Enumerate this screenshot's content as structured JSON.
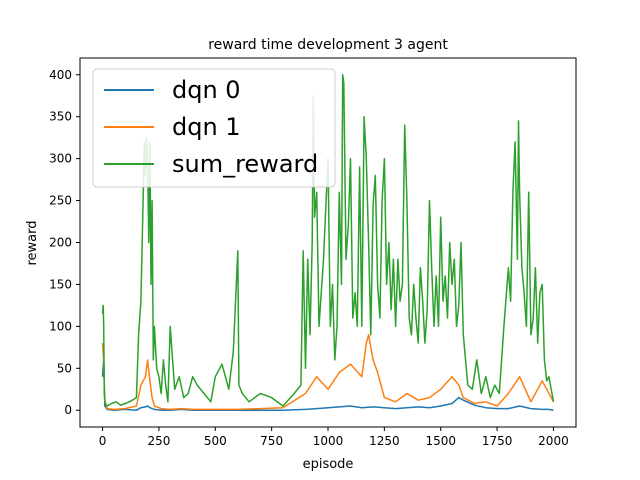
{
  "chart_data": {
    "type": "line",
    "title": "reward time development 3 agent",
    "xlabel": "episode",
    "ylabel": "reward",
    "xlim": [
      -100,
      2100
    ],
    "ylim": [
      -20,
      420
    ],
    "xticks": [
      0,
      250,
      500,
      750,
      1000,
      1250,
      1500,
      1750,
      2000
    ],
    "yticks": [
      0,
      50,
      100,
      150,
      200,
      250,
      300,
      350,
      400
    ],
    "legend_position": "top-left",
    "series": [
      {
        "name": "dqn 0",
        "color": "#1f77b4",
        "x": [
          0,
          5,
          10,
          20,
          50,
          100,
          150,
          170,
          190,
          200,
          210,
          220,
          230,
          260,
          300,
          350,
          400,
          500,
          600,
          700,
          800,
          900,
          950,
          1000,
          1050,
          1100,
          1150,
          1200,
          1250,
          1300,
          1350,
          1400,
          1450,
          1500,
          1550,
          1580,
          1600,
          1650,
          1700,
          1750,
          1800,
          1850,
          1900,
          1950,
          1980,
          2000
        ],
        "values": [
          40,
          60,
          5,
          1,
          0,
          1,
          0,
          3,
          4,
          5,
          3,
          2,
          1,
          0,
          0,
          1,
          0,
          0,
          0,
          0,
          0,
          1,
          2,
          3,
          4,
          5,
          3,
          4,
          3,
          2,
          3,
          4,
          3,
          5,
          8,
          15,
          12,
          6,
          3,
          2,
          2,
          5,
          2,
          1,
          1,
          0
        ]
      },
      {
        "name": "dqn 1",
        "color": "#ff7f0e",
        "x": [
          0,
          5,
          10,
          20,
          50,
          100,
          150,
          170,
          190,
          200,
          210,
          220,
          230,
          260,
          300,
          350,
          400,
          500,
          600,
          700,
          800,
          900,
          950,
          1000,
          1050,
          1100,
          1150,
          1170,
          1180,
          1200,
          1220,
          1250,
          1300,
          1350,
          1400,
          1450,
          1500,
          1550,
          1580,
          1600,
          1650,
          1700,
          1750,
          1800,
          1850,
          1900,
          1950,
          2000
        ],
        "values": [
          80,
          60,
          10,
          2,
          1,
          2,
          5,
          30,
          40,
          60,
          35,
          15,
          5,
          2,
          1,
          2,
          1,
          1,
          1,
          2,
          3,
          20,
          40,
          25,
          45,
          55,
          40,
          80,
          90,
          60,
          45,
          15,
          10,
          20,
          12,
          15,
          25,
          40,
          30,
          15,
          8,
          10,
          5,
          20,
          40,
          10,
          35,
          10
        ]
      },
      {
        "name": "sum_reward",
        "color": "#2ca02c",
        "x": [
          0,
          3,
          5,
          8,
          12,
          20,
          40,
          60,
          80,
          100,
          120,
          150,
          160,
          170,
          180,
          185,
          190,
          195,
          200,
          205,
          210,
          215,
          220,
          225,
          230,
          240,
          250,
          260,
          270,
          280,
          290,
          300,
          320,
          340,
          360,
          380,
          400,
          420,
          450,
          480,
          500,
          530,
          560,
          580,
          600,
          605,
          620,
          650,
          700,
          750,
          800,
          850,
          880,
          890,
          900,
          910,
          920,
          930,
          935,
          940,
          950,
          960,
          980,
          1000,
          1010,
          1020,
          1030,
          1040,
          1050,
          1060,
          1065,
          1070,
          1080,
          1090,
          1100,
          1110,
          1120,
          1130,
          1140,
          1150,
          1160,
          1170,
          1180,
          1190,
          1200,
          1210,
          1220,
          1230,
          1240,
          1250,
          1260,
          1270,
          1280,
          1290,
          1300,
          1310,
          1320,
          1330,
          1340,
          1350,
          1360,
          1370,
          1380,
          1390,
          1400,
          1410,
          1420,
          1430,
          1440,
          1450,
          1460,
          1470,
          1480,
          1490,
          1500,
          1510,
          1520,
          1530,
          1540,
          1550,
          1560,
          1570,
          1580,
          1590,
          1600,
          1620,
          1640,
          1660,
          1680,
          1700,
          1720,
          1740,
          1760,
          1780,
          1800,
          1810,
          1820,
          1830,
          1840,
          1845,
          1850,
          1860,
          1870,
          1880,
          1890,
          1900,
          1910,
          1920,
          1930,
          1940,
          1950,
          1960,
          1970,
          1980,
          1990,
          2000
        ],
        "values": [
          115,
          125,
          100,
          20,
          8,
          5,
          8,
          10,
          6,
          8,
          10,
          15,
          90,
          130,
          250,
          320,
          280,
          325,
          300,
          200,
          320,
          150,
          250,
          60,
          100,
          50,
          40,
          20,
          60,
          30,
          10,
          100,
          25,
          40,
          15,
          20,
          40,
          30,
          20,
          10,
          40,
          55,
          25,
          70,
          190,
          30,
          20,
          10,
          20,
          15,
          5,
          20,
          30,
          190,
          50,
          180,
          90,
          200,
          375,
          230,
          260,
          100,
          180,
          300,
          100,
          150,
          60,
          100,
          260,
          150,
          400,
          390,
          180,
          220,
          300,
          110,
          140,
          100,
          290,
          100,
          350,
          300,
          200,
          90,
          245,
          280,
          150,
          110,
          250,
          300,
          150,
          200,
          120,
          180,
          100,
          180,
          130,
          150,
          340,
          250,
          110,
          90,
          150,
          110,
          80,
          170,
          130,
          80,
          120,
          250,
          170,
          100,
          160,
          100,
          230,
          130,
          160,
          110,
          200,
          150,
          180,
          100,
          125,
          200,
          90,
          30,
          25,
          60,
          20,
          40,
          15,
          30,
          20,
          100,
          170,
          130,
          260,
          320,
          180,
          345,
          260,
          170,
          140,
          100,
          260,
          90,
          110,
          170,
          80,
          140,
          150,
          60,
          35,
          40,
          25,
          10
        ]
      }
    ]
  }
}
